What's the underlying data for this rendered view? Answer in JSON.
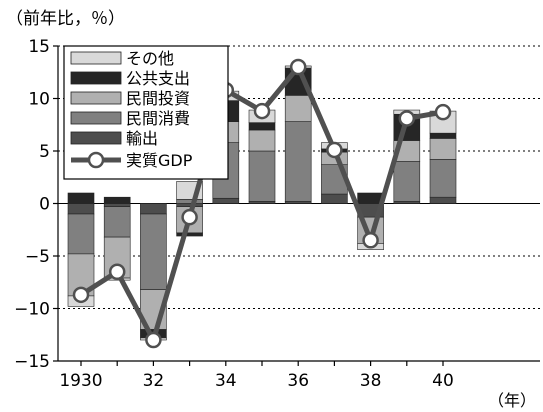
{
  "chart_data": {
    "type": "bar",
    "stacked": true,
    "y_unit_label": "（前年比，％）",
    "x_unit_label": "（年）",
    "ylim": [
      -15,
      15
    ],
    "yticks": [
      15,
      10,
      5,
      0,
      -5,
      -10,
      -15
    ],
    "ytick_labels": [
      "15",
      "10",
      "5",
      "0",
      "−5",
      "−10",
      "−15"
    ],
    "grid": "horizontal dotted",
    "legend_position": "top-left",
    "categories": [
      "1930",
      "31",
      "32",
      "33",
      "34",
      "35",
      "36",
      "37",
      "38",
      "39",
      "40"
    ],
    "xtick_labels": [
      "1930",
      "",
      "32",
      "",
      "34",
      "",
      "36",
      "",
      "38",
      "",
      "40"
    ],
    "series": [
      {
        "name": "輸出",
        "color": "#4d4d4d",
        "values": [
          -1.0,
          -0.3,
          -1.0,
          -0.3,
          0.5,
          0.2,
          0.2,
          0.9,
          -1.3,
          0.2,
          0.6
        ]
      },
      {
        "name": "民間消費",
        "color": "#808080",
        "values": [
          -3.8,
          -2.9,
          -7.2,
          0.4,
          5.3,
          4.8,
          7.6,
          2.8,
          0.0,
          3.8,
          3.6
        ]
      },
      {
        "name": "民間投資",
        "color": "#b0b0b0",
        "values": [
          -4.0,
          -3.9,
          -3.8,
          -2.5,
          2.0,
          2.0,
          2.5,
          1.2,
          -2.5,
          2.0,
          2.0
        ]
      },
      {
        "name": "公共支出",
        "color": "#262626",
        "values": [
          1.0,
          0.6,
          -0.8,
          -0.3,
          2.0,
          0.7,
          2.6,
          0.3,
          1.0,
          2.5,
          0.5
        ]
      },
      {
        "name": "その他",
        "color": "#d9d9d9",
        "values": [
          -1.0,
          -0.2,
          -0.2,
          1.7,
          0.9,
          1.2,
          0.2,
          0.6,
          -0.6,
          0.4,
          2.1
        ]
      }
    ],
    "line": {
      "name": "実質GDP",
      "color": "#505050",
      "values": [
        -8.7,
        -6.5,
        -13.0,
        -1.3,
        10.8,
        8.8,
        13.0,
        5.1,
        -3.5,
        8.1,
        8.7
      ]
    }
  }
}
